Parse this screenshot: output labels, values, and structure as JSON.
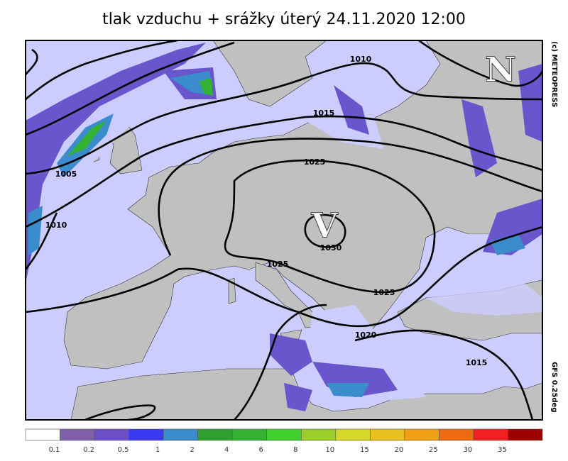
{
  "header": {
    "title": "tlak vzduchu + srážky   úterý 24.11.2020 12:00"
  },
  "map": {
    "pressure_centers": [
      {
        "label": "N"
      },
      {
        "label": "V"
      }
    ],
    "isobar_labels": [
      "1010",
      "1015",
      "1025",
      "1005",
      "1010",
      "1030",
      "1025",
      "1025",
      "1020",
      "1015"
    ],
    "credit": "(c) METEOPRESS",
    "model": "GFS 0.25deg"
  },
  "legend": {
    "colors": [
      "#ffffff",
      "#7f5fa8",
      "#6a4fc8",
      "#3a3af0",
      "#3a8ccc",
      "#2fa02f",
      "#33b233",
      "#3fd22f",
      "#9ccf2a",
      "#d6d62a",
      "#e8c020",
      "#f0a010",
      "#f06a10",
      "#f02020",
      "#a00000"
    ],
    "labels": [
      "0.1",
      "0.2",
      "0.5",
      "1",
      "2",
      "4",
      "6",
      "8",
      "10",
      "15",
      "20",
      "25",
      "30",
      "35"
    ]
  }
}
